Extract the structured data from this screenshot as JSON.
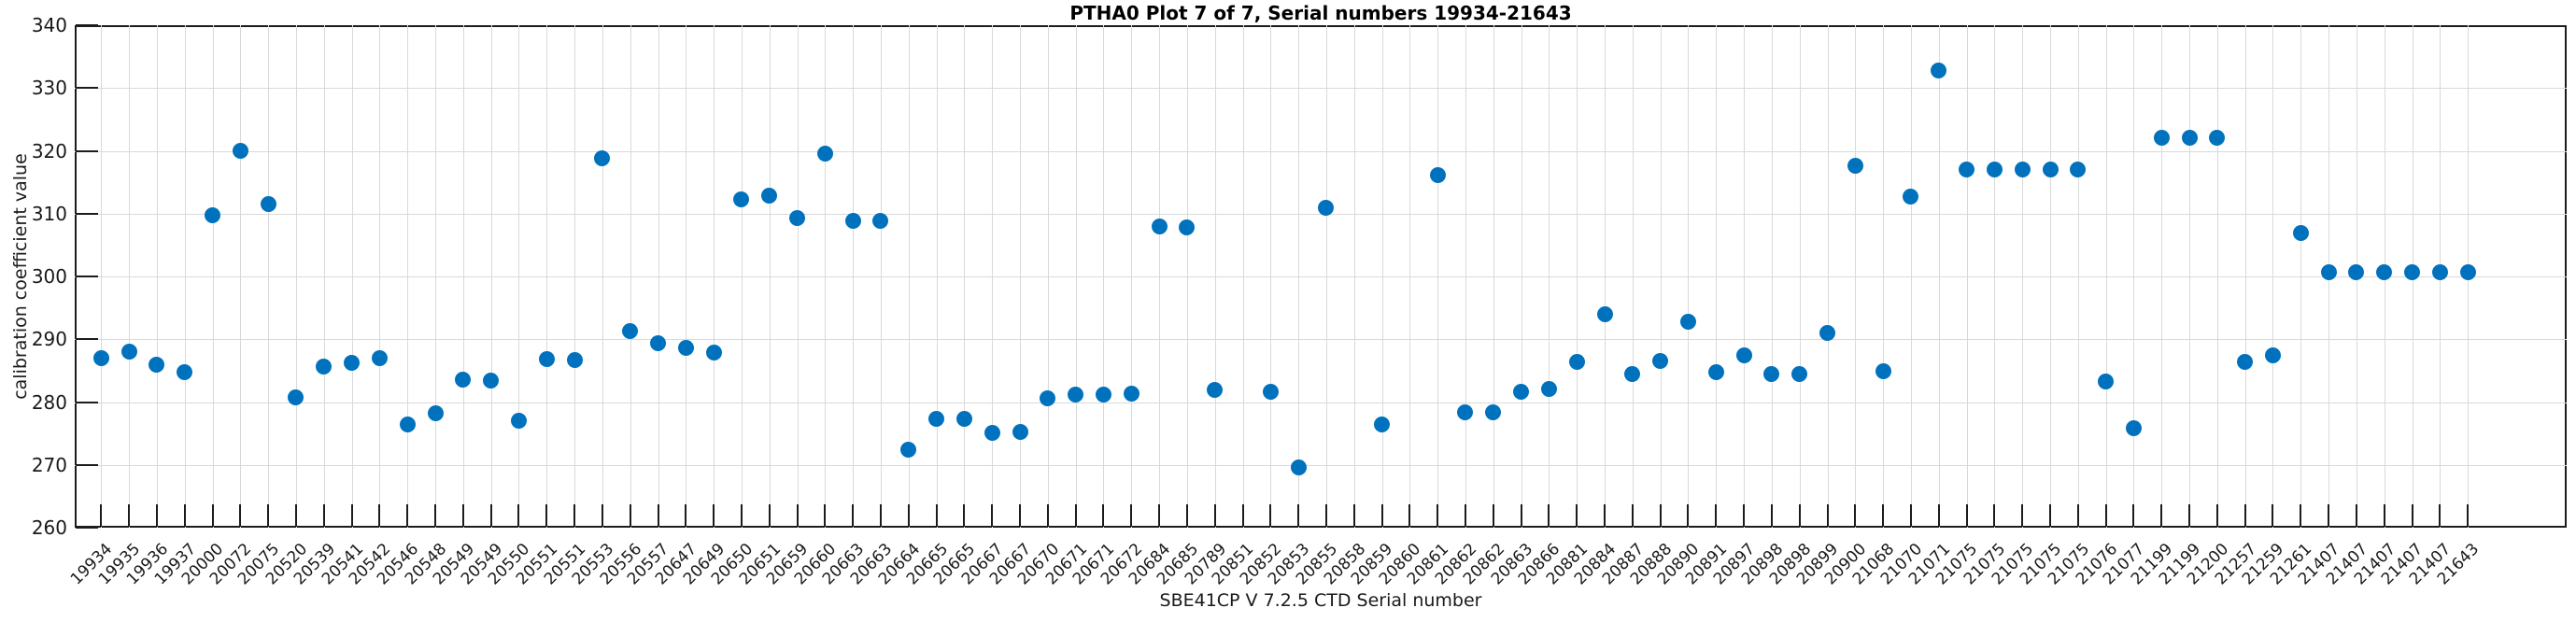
{
  "title": "PTHA0 Plot 7 of 7, Serial numbers 19934-21643",
  "chart_data": {
    "type": "scatter",
    "title": "PTHA0 Plot 7 of 7, Serial numbers 19934-21643",
    "xlabel": "SBE41CP V 7.2.5 CTD Serial number",
    "ylabel": "calibration coefficient value",
    "ylim": [
      260,
      340
    ],
    "yticks": [
      260,
      270,
      280,
      290,
      300,
      310,
      320,
      330,
      340
    ],
    "grid": true,
    "legend": "none",
    "marker_color": "#0072BD",
    "categories": [
      "19934",
      "19935",
      "19936",
      "19937",
      "20000",
      "20072",
      "20075",
      "20520",
      "20539",
      "20541",
      "20542",
      "20546",
      "20548",
      "20549",
      "20549",
      "20550",
      "20551",
      "20551",
      "20553",
      "20556",
      "20557",
      "20647",
      "20649",
      "20650",
      "20651",
      "20659",
      "20660",
      "20663",
      "20663",
      "20664",
      "20665",
      "20665",
      "20667",
      "20667",
      "20670",
      "20671",
      "20671",
      "20672",
      "20684",
      "20685",
      "20789",
      "20851",
      "20852",
      "20853",
      "20855",
      "20858",
      "20859",
      "20860",
      "20861",
      "20862",
      "20862",
      "20863",
      "20866",
      "20881",
      "20884",
      "20887",
      "20888",
      "20890",
      "20891",
      "20897",
      "20898",
      "20898",
      "20899",
      "20900",
      "21068",
      "21070",
      "21071",
      "21075",
      "21075",
      "21075",
      "21075",
      "21075",
      "21076",
      "21077",
      "21199",
      "21199",
      "21200",
      "21257",
      "21259",
      "21261",
      "21407",
      "21407",
      "21407",
      "21407",
      "21407",
      "21643"
    ],
    "values": [
      287.0,
      288.0,
      286.0,
      284.8,
      309.8,
      320.0,
      311.5,
      280.8,
      285.6,
      286.3,
      287.0,
      276.5,
      278.2,
      283.5,
      283.4,
      277.0,
      286.8,
      286.7,
      318.8,
      291.3,
      289.4,
      288.6,
      287.9,
      312.3,
      312.8,
      309.3,
      319.6,
      308.9,
      308.9,
      272.4,
      277.3,
      277.3,
      275.1,
      275.2,
      280.6,
      281.2,
      281.2,
      281.4,
      308.0,
      307.8,
      282.0,
      null,
      281.7,
      269.6,
      310.9,
      null,
      276.4,
      null,
      316.1,
      278.3,
      278.3,
      281.7,
      282.1,
      286.4,
      294.0,
      284.5,
      286.5,
      292.8,
      284.8,
      287.5,
      284.5,
      284.5,
      291.0,
      317.6,
      284.9,
      312.7,
      332.8,
      317.0,
      317.0,
      317.0,
      317.0,
      317.0,
      283.2,
      275.9,
      322.1,
      322.1,
      322.1,
      286.4,
      287.5,
      306.9,
      300.7,
      300.7,
      300.7,
      300.7,
      300.7,
      300.7
    ]
  }
}
